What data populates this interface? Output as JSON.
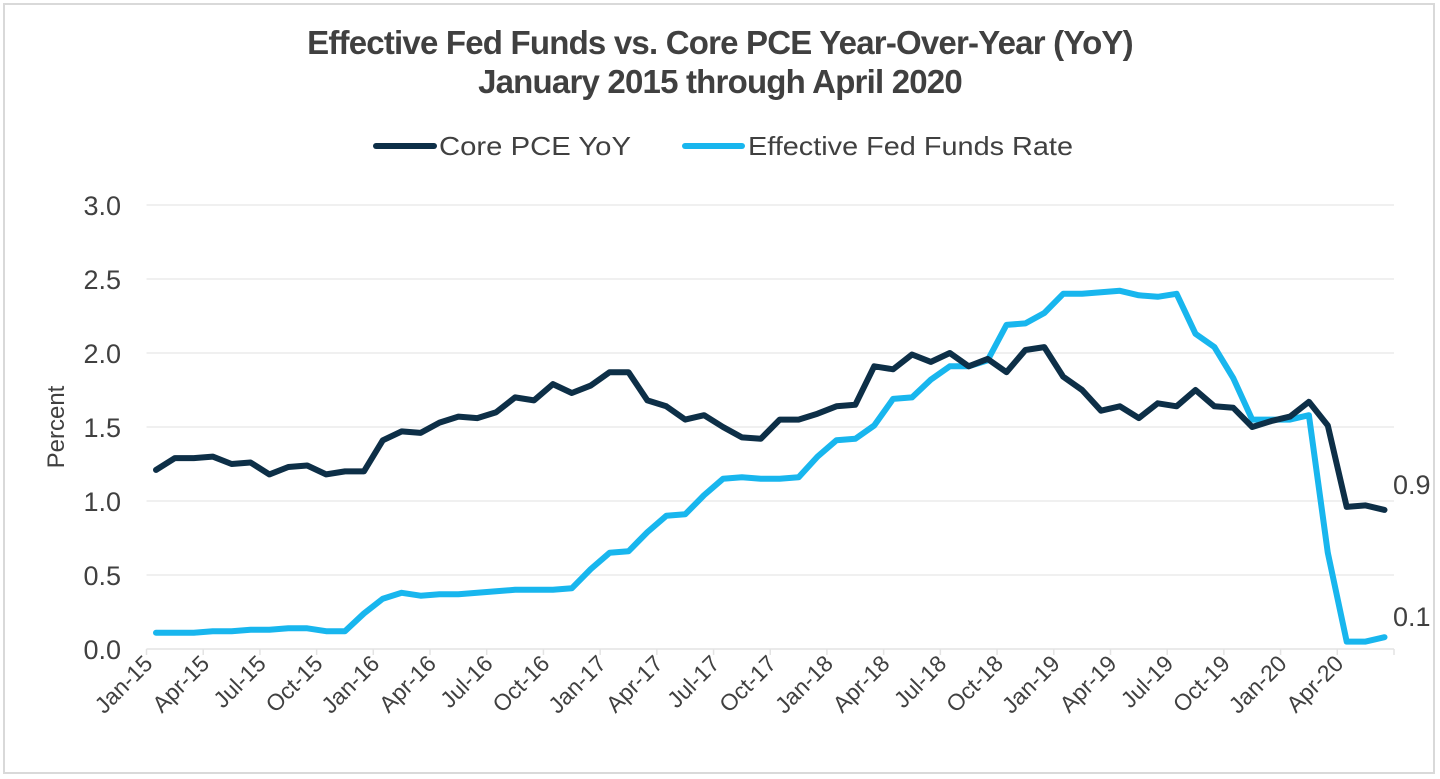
{
  "chart_data": {
    "type": "line",
    "title": "Effective Fed Funds vs. Core PCE Year-Over-Year (YoY)",
    "subtitle": "January 2015 through April 2020",
    "xlabel": "",
    "ylabel": "Percent",
    "ylim": [
      0,
      3.0
    ],
    "yticks": [
      "0.0",
      "0.5",
      "1.0",
      "1.5",
      "2.0",
      "2.5",
      "3.0"
    ],
    "grid": true,
    "legend_position": "top",
    "categories": [
      "Jan-15",
      "Feb-15",
      "Mar-15",
      "Apr-15",
      "May-15",
      "Jun-15",
      "Jul-15",
      "Aug-15",
      "Sep-15",
      "Oct-15",
      "Nov-15",
      "Dec-15",
      "Jan-16",
      "Feb-16",
      "Mar-16",
      "Apr-16",
      "May-16",
      "Jun-16",
      "Jul-16",
      "Aug-16",
      "Sep-16",
      "Oct-16",
      "Nov-16",
      "Dec-16",
      "Jan-17",
      "Feb-17",
      "Mar-17",
      "Apr-17",
      "May-17",
      "Jun-17",
      "Jul-17",
      "Aug-17",
      "Sep-17",
      "Oct-17",
      "Nov-17",
      "Dec-17",
      "Jan-18",
      "Feb-18",
      "Mar-18",
      "Apr-18",
      "May-18",
      "Jun-18",
      "Jul-18",
      "Aug-18",
      "Sep-18",
      "Oct-18",
      "Nov-18",
      "Dec-18",
      "Jan-19",
      "Feb-19",
      "Mar-19",
      "Apr-19",
      "May-19",
      "Jun-19",
      "Jul-19",
      "Aug-19",
      "Sep-19",
      "Oct-19",
      "Nov-19",
      "Dec-19",
      "Jan-20",
      "Feb-20",
      "Mar-20",
      "Apr-20",
      "May-20",
      "Jun-20"
    ],
    "tick_labels": [
      "Jan-15",
      "Apr-15",
      "Jul-15",
      "Oct-15",
      "Jan-16",
      "Apr-16",
      "Jul-16",
      "Oct-16",
      "Jan-17",
      "Apr-17",
      "Jul-17",
      "Oct-17",
      "Jan-18",
      "Apr-18",
      "Jul-18",
      "Oct-18",
      "Jan-19",
      "Apr-19",
      "Jul-19",
      "Oct-19",
      "Jan-20",
      "Apr-20"
    ],
    "series": [
      {
        "name": "Core PCE YoY",
        "color": "#0d2f47",
        "end_label": "0.9",
        "values": [
          1.21,
          1.29,
          1.29,
          1.3,
          1.25,
          1.26,
          1.18,
          1.23,
          1.24,
          1.18,
          1.2,
          1.2,
          1.41,
          1.47,
          1.46,
          1.53,
          1.57,
          1.56,
          1.6,
          1.7,
          1.68,
          1.79,
          1.73,
          1.78,
          1.87,
          1.87,
          1.68,
          1.64,
          1.55,
          1.58,
          1.5,
          1.43,
          1.42,
          1.55,
          1.55,
          1.59,
          1.64,
          1.65,
          1.91,
          1.89,
          1.99,
          1.94,
          2.0,
          1.91,
          1.96,
          1.87,
          2.02,
          2.04,
          1.84,
          1.75,
          1.61,
          1.64,
          1.56,
          1.66,
          1.64,
          1.75,
          1.64,
          1.63,
          1.5,
          1.54,
          1.57,
          1.67,
          1.51,
          0.96,
          0.97,
          0.94
        ]
      },
      {
        "name": "Effective Fed Funds Rate",
        "color": "#18b6ee",
        "end_label": "0.1",
        "values": [
          0.11,
          0.11,
          0.11,
          0.12,
          0.12,
          0.13,
          0.13,
          0.14,
          0.14,
          0.12,
          0.12,
          0.24,
          0.34,
          0.38,
          0.36,
          0.37,
          0.37,
          0.38,
          0.39,
          0.4,
          0.4,
          0.4,
          0.41,
          0.54,
          0.65,
          0.66,
          0.79,
          0.9,
          0.91,
          1.04,
          1.15,
          1.16,
          1.15,
          1.15,
          1.16,
          1.3,
          1.41,
          1.42,
          1.51,
          1.69,
          1.7,
          1.82,
          1.91,
          1.91,
          1.95,
          2.19,
          2.2,
          2.27,
          2.4,
          2.4,
          2.41,
          2.42,
          2.39,
          2.38,
          2.4,
          2.13,
          2.04,
          1.83,
          1.55,
          1.55,
          1.55,
          1.58,
          0.65,
          0.05,
          0.05,
          0.08
        ]
      }
    ]
  }
}
